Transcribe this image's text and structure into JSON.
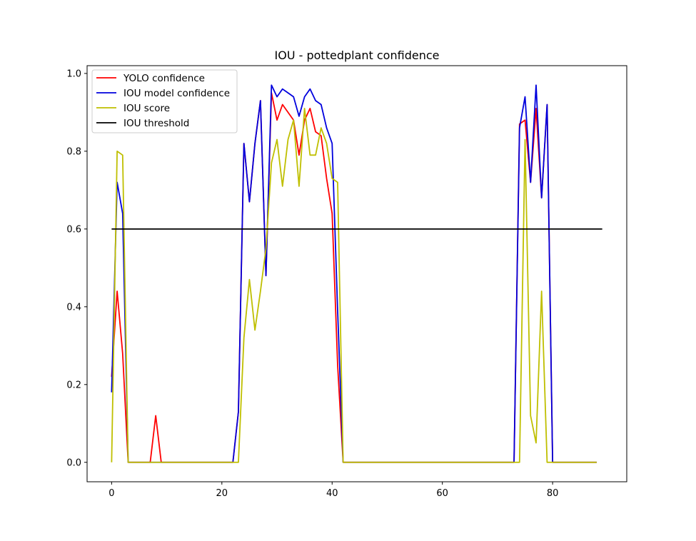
{
  "chart_data": {
    "type": "line",
    "title": "IOU - pottedplant confidence",
    "xlabel": "",
    "ylabel": "",
    "xlim": [
      -4.45,
      93.45
    ],
    "ylim": [
      -0.05,
      1.02
    ],
    "x_ticks": [
      0,
      20,
      40,
      60,
      80
    ],
    "x_tick_labels": [
      "0",
      "20",
      "40",
      "60",
      "80"
    ],
    "y_ticks": [
      0.0,
      0.2,
      0.4,
      0.6,
      0.8,
      1.0
    ],
    "y_tick_labels": [
      "0.0",
      "0.2",
      "0.4",
      "0.6",
      "0.8",
      "1.0"
    ],
    "grid": false,
    "legend_position": "upper-left",
    "series": [
      {
        "name": "YOLO confidence",
        "color": "#ff0000",
        "x": [
          0,
          1,
          2,
          3,
          4,
          5,
          6,
          7,
          8,
          9,
          10,
          11,
          12,
          13,
          14,
          15,
          16,
          17,
          18,
          19,
          20,
          21,
          22,
          23,
          24,
          25,
          26,
          27,
          28,
          29,
          30,
          31,
          32,
          33,
          34,
          35,
          36,
          37,
          38,
          39,
          40,
          41,
          42,
          43,
          44,
          45,
          46,
          47,
          48,
          49,
          50,
          51,
          52,
          53,
          54,
          55,
          56,
          57,
          58,
          59,
          60,
          61,
          62,
          63,
          64,
          65,
          66,
          67,
          68,
          69,
          70,
          71,
          72,
          73,
          74,
          75,
          76,
          77,
          78,
          79,
          80,
          81,
          82,
          83,
          84,
          85,
          86,
          87,
          88
        ],
        "values": [
          0.22,
          0.44,
          0.28,
          0.0,
          0.0,
          0.0,
          0.0,
          0.0,
          0.12,
          0.0,
          0.0,
          0.0,
          0.0,
          0.0,
          0.0,
          0.0,
          0.0,
          0.0,
          0.0,
          0.0,
          0.0,
          0.0,
          0.0,
          0.13,
          0.82,
          0.67,
          0.82,
          0.93,
          0.48,
          0.95,
          0.88,
          0.92,
          0.9,
          0.88,
          0.79,
          0.88,
          0.91,
          0.85,
          0.84,
          0.73,
          0.64,
          0.25,
          0.0,
          0.0,
          0.0,
          0.0,
          0.0,
          0.0,
          0.0,
          0.0,
          0.0,
          0.0,
          0.0,
          0.0,
          0.0,
          0.0,
          0.0,
          0.0,
          0.0,
          0.0,
          0.0,
          0.0,
          0.0,
          0.0,
          0.0,
          0.0,
          0.0,
          0.0,
          0.0,
          0.0,
          0.0,
          0.0,
          0.0,
          0.0,
          0.87,
          0.88,
          0.72,
          0.91,
          0.68,
          0.92,
          0.0,
          0.0,
          0.0,
          0.0,
          0.0,
          0.0,
          0.0,
          0.0,
          0.0
        ]
      },
      {
        "name": "IOU model confidence",
        "color": "#0000dd",
        "x": [
          0,
          1,
          2,
          3,
          4,
          5,
          6,
          7,
          8,
          9,
          10,
          11,
          12,
          13,
          14,
          15,
          16,
          17,
          18,
          19,
          20,
          21,
          22,
          23,
          24,
          25,
          26,
          27,
          28,
          29,
          30,
          31,
          32,
          33,
          34,
          35,
          36,
          37,
          38,
          39,
          40,
          41,
          42,
          43,
          44,
          45,
          46,
          47,
          48,
          49,
          50,
          51,
          52,
          53,
          54,
          55,
          56,
          57,
          58,
          59,
          60,
          61,
          62,
          63,
          64,
          65,
          66,
          67,
          68,
          69,
          70,
          71,
          72,
          73,
          74,
          75,
          76,
          77,
          78,
          79,
          80,
          81,
          82,
          83,
          84,
          85,
          86,
          87,
          88
        ],
        "values": [
          0.18,
          0.72,
          0.64,
          0.0,
          0.0,
          0.0,
          0.0,
          0.0,
          0.0,
          0.0,
          0.0,
          0.0,
          0.0,
          0.0,
          0.0,
          0.0,
          0.0,
          0.0,
          0.0,
          0.0,
          0.0,
          0.0,
          0.0,
          0.13,
          0.82,
          0.67,
          0.82,
          0.93,
          0.48,
          0.97,
          0.94,
          0.96,
          0.95,
          0.94,
          0.89,
          0.94,
          0.96,
          0.93,
          0.92,
          0.86,
          0.82,
          0.39,
          0.0,
          0.0,
          0.0,
          0.0,
          0.0,
          0.0,
          0.0,
          0.0,
          0.0,
          0.0,
          0.0,
          0.0,
          0.0,
          0.0,
          0.0,
          0.0,
          0.0,
          0.0,
          0.0,
          0.0,
          0.0,
          0.0,
          0.0,
          0.0,
          0.0,
          0.0,
          0.0,
          0.0,
          0.0,
          0.0,
          0.0,
          0.0,
          0.86,
          0.94,
          0.72,
          0.97,
          0.68,
          0.92,
          0.0,
          0.0,
          0.0,
          0.0,
          0.0,
          0.0,
          0.0,
          0.0,
          0.0
        ]
      },
      {
        "name": "IOU score",
        "color": "#bfbf00",
        "x": [
          0,
          1,
          2,
          3,
          4,
          5,
          6,
          7,
          8,
          9,
          10,
          11,
          12,
          13,
          14,
          15,
          16,
          17,
          18,
          19,
          20,
          21,
          22,
          23,
          24,
          25,
          26,
          27,
          28,
          29,
          30,
          31,
          32,
          33,
          34,
          35,
          36,
          37,
          38,
          39,
          40,
          41,
          42,
          43,
          44,
          45,
          46,
          47,
          48,
          49,
          50,
          51,
          52,
          53,
          54,
          55,
          56,
          57,
          58,
          59,
          60,
          61,
          62,
          63,
          64,
          65,
          66,
          67,
          68,
          69,
          70,
          71,
          72,
          73,
          74,
          75,
          76,
          77,
          78,
          79,
          80,
          81,
          82,
          83,
          84,
          85,
          86,
          87,
          88
        ],
        "values": [
          0.0,
          0.8,
          0.79,
          0.0,
          0.0,
          0.0,
          0.0,
          0.0,
          0.0,
          0.0,
          0.0,
          0.0,
          0.0,
          0.0,
          0.0,
          0.0,
          0.0,
          0.0,
          0.0,
          0.0,
          0.0,
          0.0,
          0.0,
          0.0,
          0.32,
          0.47,
          0.34,
          0.44,
          0.55,
          0.77,
          0.83,
          0.71,
          0.83,
          0.88,
          0.71,
          0.91,
          0.79,
          0.79,
          0.86,
          0.82,
          0.73,
          0.72,
          0.0,
          0.0,
          0.0,
          0.0,
          0.0,
          0.0,
          0.0,
          0.0,
          0.0,
          0.0,
          0.0,
          0.0,
          0.0,
          0.0,
          0.0,
          0.0,
          0.0,
          0.0,
          0.0,
          0.0,
          0.0,
          0.0,
          0.0,
          0.0,
          0.0,
          0.0,
          0.0,
          0.0,
          0.0,
          0.0,
          0.0,
          0.0,
          0.0,
          0.83,
          0.12,
          0.05,
          0.44,
          0.0,
          0.0,
          0.0,
          0.0,
          0.0,
          0.0,
          0.0,
          0.0,
          0.0,
          0.0
        ]
      },
      {
        "name": "IOU threshold",
        "color": "#000000",
        "x": [
          0,
          89
        ],
        "values": [
          0.6,
          0.6
        ]
      }
    ]
  }
}
